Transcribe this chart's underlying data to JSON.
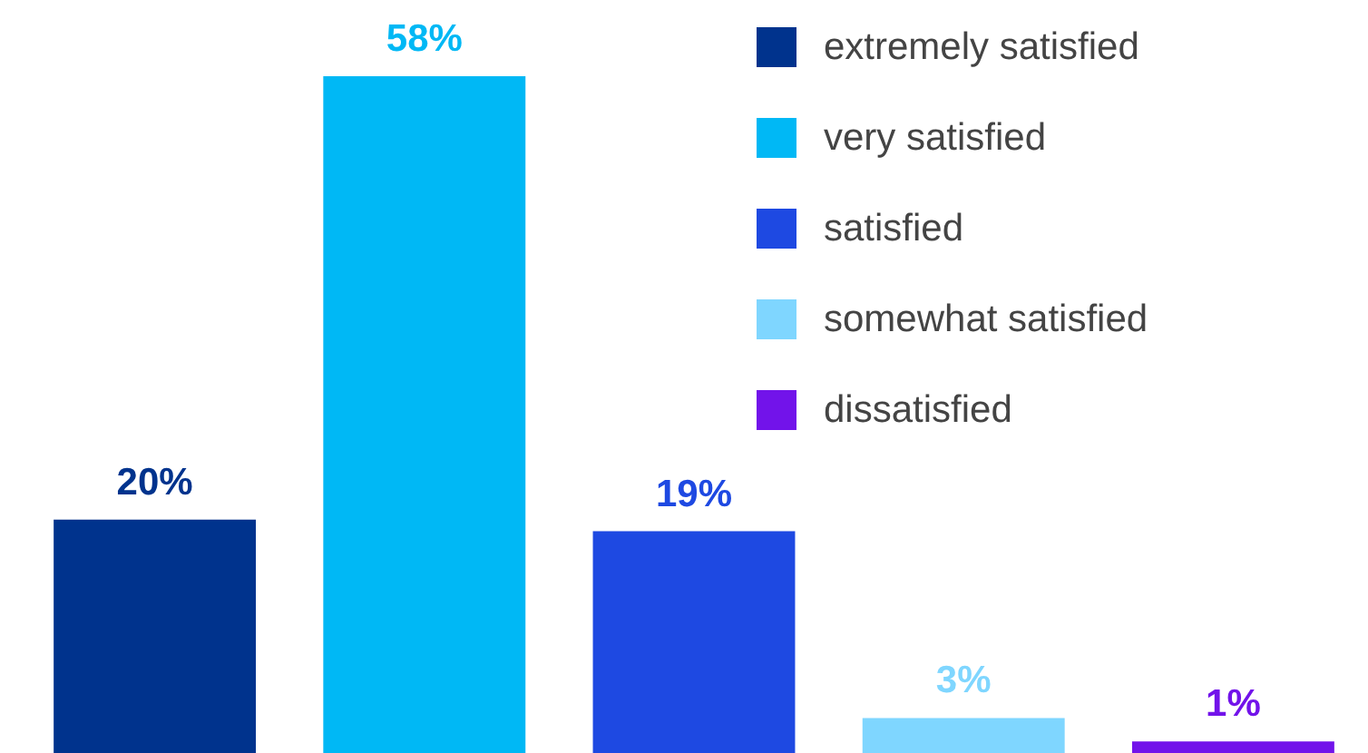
{
  "chart_data": {
    "type": "bar",
    "categories": [
      null,
      null,
      null,
      null,
      null
    ],
    "stacked": true,
    "legend": "top right",
    "tick_labels": false,
    "series": [
      {
        "name": "extremely satisfied",
        "color": "#00338d",
        "values": [
          20,
          null,
          null,
          null,
          null
        ],
        "value_labels": [
          "20%",
          null,
          null,
          null,
          null
        ]
      },
      {
        "name": "very satisfied",
        "color": "#00b8f5",
        "values": [
          null,
          58,
          null,
          null,
          null
        ],
        "value_labels": [
          null,
          "58%",
          null,
          null,
          null
        ]
      },
      {
        "name": "satisfied",
        "color": "#1e49e2",
        "values": [
          null,
          null,
          19,
          null,
          null
        ],
        "value_labels": [
          null,
          null,
          "19%",
          null,
          null
        ]
      },
      {
        "name": "somewhat satisfied",
        "color": "#7fd6ff",
        "values": [
          null,
          null,
          null,
          3,
          null
        ],
        "value_labels": [
          null,
          null,
          null,
          "3%",
          null
        ]
      },
      {
        "name": "dissatisfied",
        "color": "#7213ea",
        "values": [
          null,
          null,
          null,
          null,
          1
        ],
        "value_labels": [
          null,
          null,
          null,
          null,
          "1%"
        ]
      }
    ]
  }
}
